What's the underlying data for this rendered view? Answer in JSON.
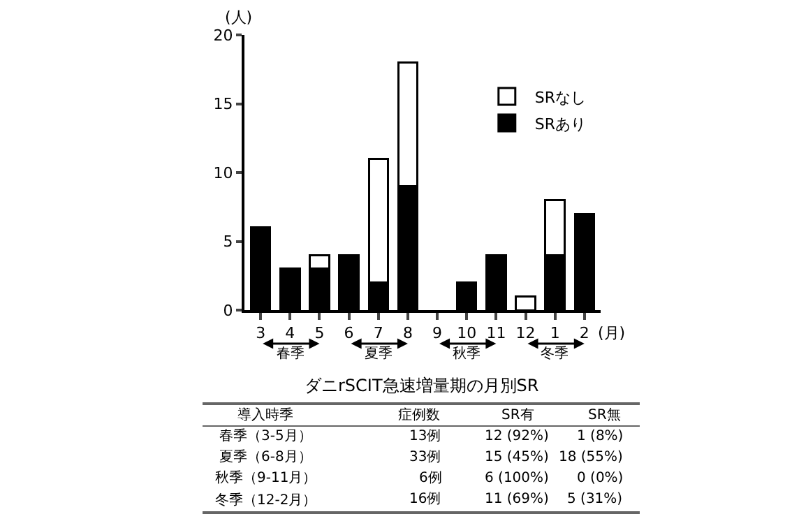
{
  "chart_data": {
    "type": "bar",
    "stacked": true,
    "title": "ダニrSCIT急速増量期の月別SR",
    "xlabel": "(月)",
    "ylabel": "(人)",
    "categories": [
      "3",
      "4",
      "5",
      "6",
      "7",
      "8",
      "9",
      "10",
      "11",
      "12",
      "1",
      "2"
    ],
    "series": [
      {
        "name": "SRあり",
        "color": "#000000",
        "values": [
          6,
          3,
          3,
          4,
          2,
          9,
          0,
          2,
          4,
          0,
          4,
          7
        ]
      },
      {
        "name": "SRなし",
        "color": "#ffffff",
        "values": [
          0,
          0,
          1,
          0,
          9,
          9,
          0,
          0,
          0,
          1,
          4,
          0
        ]
      }
    ],
    "ylim": [
      0,
      20
    ],
    "yticks": [
      0,
      5,
      10,
      15,
      20
    ],
    "legend": "top right",
    "annotations": [
      "春季",
      "夏季",
      "秋季",
      "冬季",
      "導入時季",
      "症例数",
      "SR有",
      "SR無",
      "春季（3-5月）",
      "13例",
      "12 (92%)",
      "1 (8%)",
      "夏季（6-8月）",
      "33例",
      "15 (45%)",
      "18 (55%)",
      "秋季（9-11月）",
      "6例",
      "6 (100%)",
      "0 (0%)",
      "冬季（12-2月）",
      "16例",
      "11 (69%)",
      "5 (31%)"
    ]
  }
}
